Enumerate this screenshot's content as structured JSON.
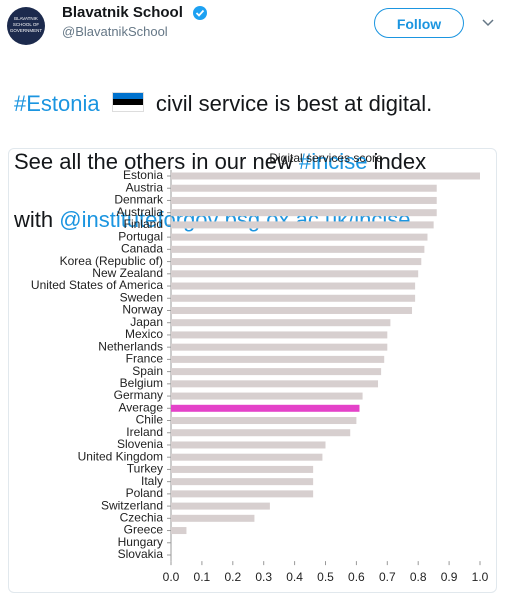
{
  "header": {
    "name": "Blavatnik School",
    "handle": "@BlavatnikSchool",
    "avatar_text": [
      "BLAVATNIK",
      "SCHOOL OF",
      "GOVERNMENT"
    ],
    "follow": "Follow"
  },
  "tweet": {
    "line1": [
      "#Estonia",
      "civil service is best at digital."
    ],
    "line2": [
      "See all the others in our new ",
      "#incise",
      " index"
    ],
    "line3": [
      "with ",
      "@instituteforgov",
      " ",
      "bsg.ox.ac.uk/incise"
    ]
  },
  "chart_data": {
    "type": "bar",
    "orientation": "horizontal",
    "title": "Digital services score",
    "categories": [
      "Estonia",
      "Austria",
      "Denmark",
      "Australia",
      "Finland",
      "Portugal",
      "Canada",
      "Korea (Republic of)",
      "New Zealand",
      "United States of America",
      "Sweden",
      "Norway",
      "Japan",
      "Mexico",
      "Netherlands",
      "France",
      "Spain",
      "Belgium",
      "Germany",
      "Average",
      "Chile",
      "Ireland",
      "Slovenia",
      "United Kingdom",
      "Turkey",
      "Italy",
      "Poland",
      "Switzerland",
      "Czechia",
      "Greece",
      "Hungary",
      "Slovakia"
    ],
    "values": [
      1.0,
      0.86,
      0.86,
      0.86,
      0.85,
      0.83,
      0.82,
      0.81,
      0.8,
      0.79,
      0.79,
      0.78,
      0.71,
      0.7,
      0.7,
      0.69,
      0.68,
      0.67,
      0.62,
      0.61,
      0.6,
      0.58,
      0.5,
      0.49,
      0.46,
      0.46,
      0.46,
      0.32,
      0.27,
      0.05,
      0,
      0
    ],
    "colors": [
      "#d7cfcf",
      "#d7cfcf",
      "#d7cfcf",
      "#d7cfcf",
      "#d7cfcf",
      "#d7cfcf",
      "#d7cfcf",
      "#d7cfcf",
      "#d7cfcf",
      "#d7cfcf",
      "#d7cfcf",
      "#d7cfcf",
      "#d7cfcf",
      "#d7cfcf",
      "#d7cfcf",
      "#d7cfcf",
      "#d7cfcf",
      "#d7cfcf",
      "#d7cfcf",
      "#e442c9",
      "#d7cfcf",
      "#d7cfcf",
      "#d7cfcf",
      "#d7cfcf",
      "#d7cfcf",
      "#d7cfcf",
      "#d7cfcf",
      "#d7cfcf",
      "#d7cfcf",
      "#d7cfcf",
      "#d7cfcf",
      "#d7cfcf"
    ],
    "xlim": [
      0,
      1.0
    ],
    "xticks": [
      {
        "value": 0,
        "label": "0.0"
      },
      0.1,
      0.2,
      0.3,
      0.4,
      0.5,
      0.6,
      0.7,
      0.8,
      0.9,
      {
        "value": 1,
        "label": "1.0"
      }
    ]
  }
}
